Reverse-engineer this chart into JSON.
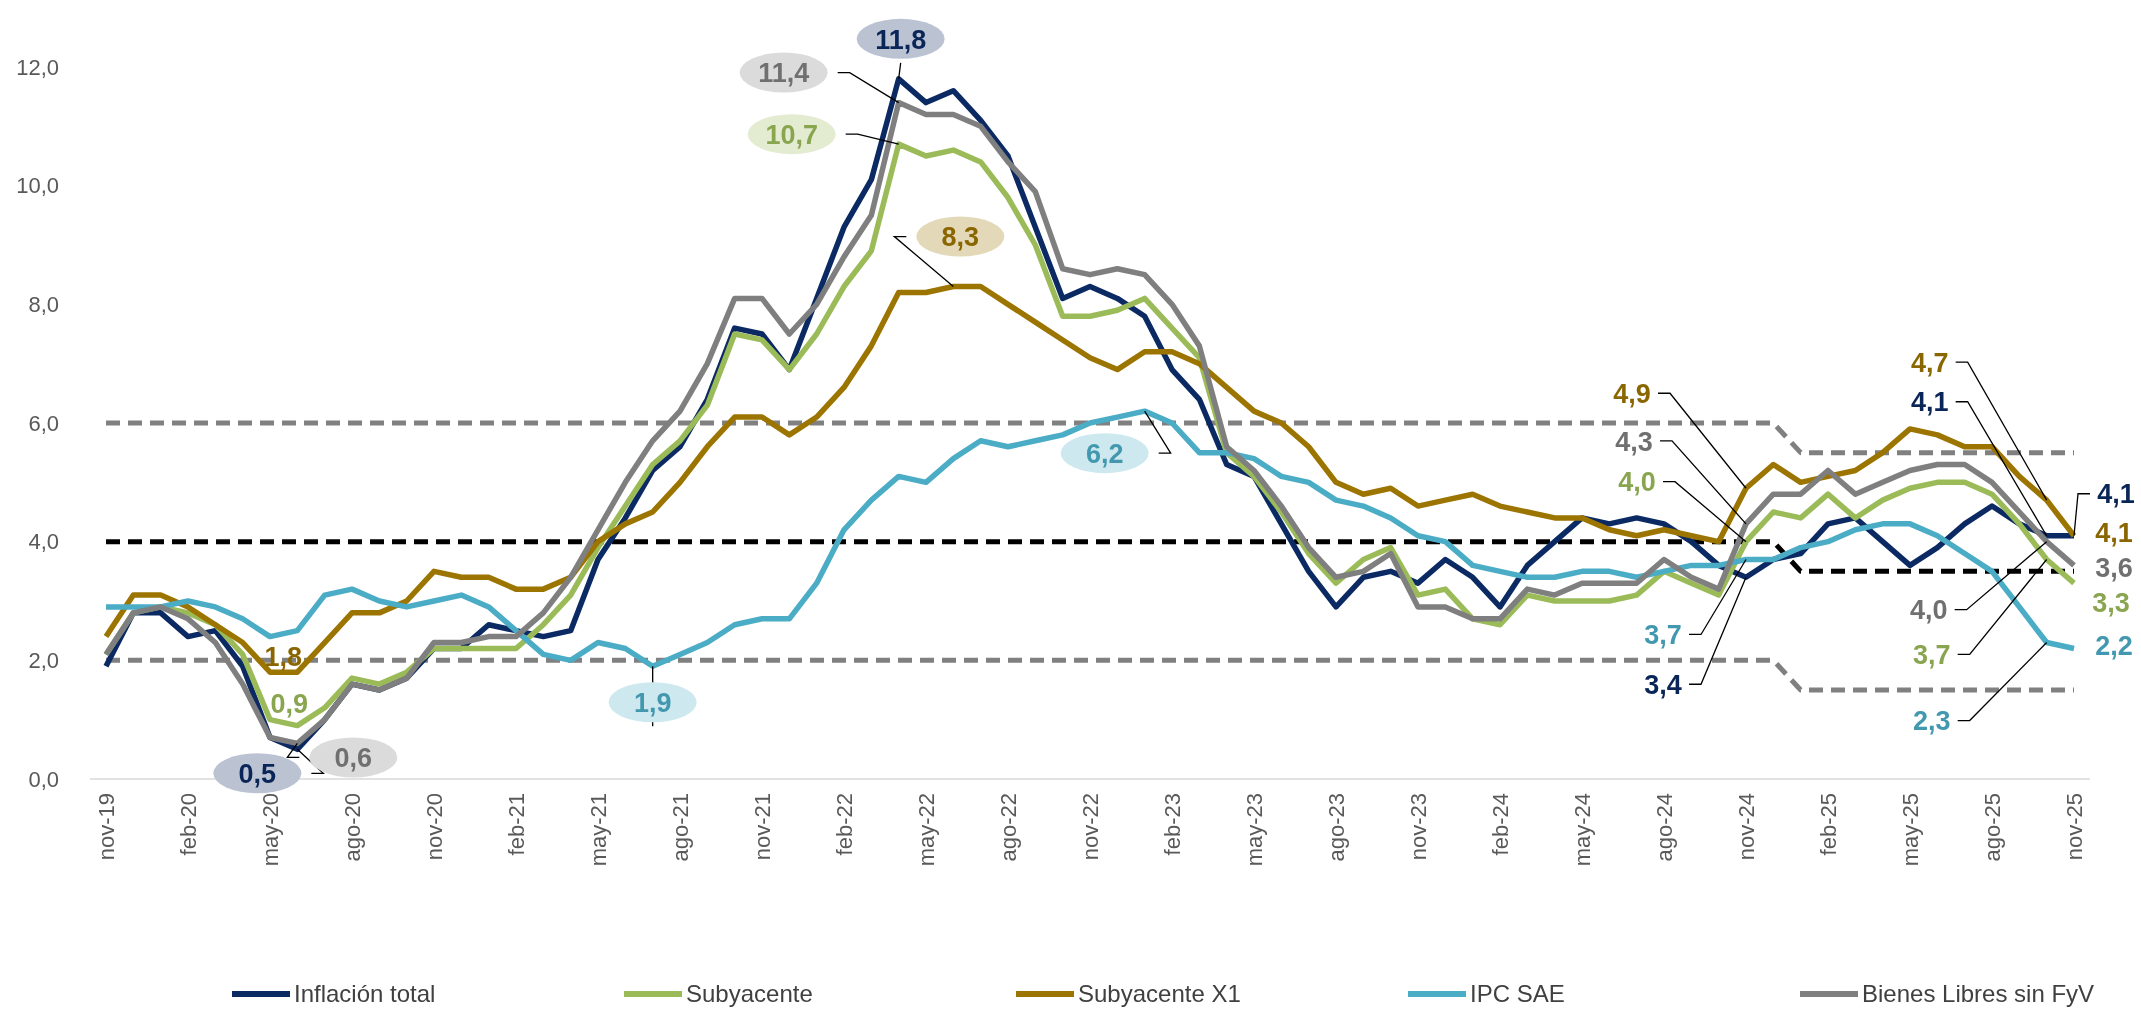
{
  "chart_data": {
    "type": "line",
    "categories": [
      "nov-19",
      null,
      null,
      "feb-20",
      null,
      null,
      "may-20",
      null,
      null,
      "ago-20",
      null,
      null,
      "nov-20",
      null,
      null,
      "feb-21",
      null,
      null,
      "may-21",
      null,
      null,
      "ago-21",
      null,
      null,
      "nov-21",
      null,
      null,
      "feb-22",
      null,
      null,
      "may-22",
      null,
      null,
      "ago-22",
      null,
      null,
      "nov-22",
      null,
      null,
      "feb-23",
      null,
      null,
      "may-23",
      null,
      null,
      "ago-23",
      null,
      null,
      "nov-23",
      null,
      null,
      "feb-24",
      null,
      null,
      "may-24",
      null,
      null,
      "ago-24",
      null,
      null,
      "nov-24",
      null,
      null,
      "feb-25",
      null,
      null,
      "may-25",
      null,
      null,
      "ago-25",
      null,
      null,
      "nov-25"
    ],
    "ylim": [
      0,
      12
    ],
    "yticks": [
      {
        "value": 0,
        "label": "0,0"
      },
      {
        "value": 2,
        "label": "2,0"
      },
      {
        "value": 4,
        "label": "4,0"
      },
      {
        "value": 6,
        "label": "6,0"
      },
      {
        "value": 8,
        "label": "8,0"
      },
      {
        "value": 10,
        "label": "10,0"
      },
      {
        "value": 12,
        "label": "12,0"
      }
    ],
    "grid": false,
    "legend": "bottom",
    "marker": "none",
    "series": [
      {
        "name": "Inflación total",
        "color": "#0b2a63",
        "values": [
          1.9,
          2.8,
          2.8,
          2.4,
          2.5,
          1.9,
          0.7,
          0.5,
          1.0,
          1.6,
          1.5,
          1.7,
          2.2,
          2.2,
          2.6,
          2.5,
          2.4,
          2.5,
          3.7,
          4.4,
          5.2,
          5.6,
          6.4,
          7.6,
          7.5,
          6.9,
          8.1,
          9.3,
          10.1,
          11.8,
          11.4,
          11.6,
          11.1,
          10.5,
          9.3,
          8.1,
          8.3,
          8.1,
          7.8,
          6.9,
          6.4,
          5.3,
          5.1,
          4.3,
          3.5,
          2.9,
          3.4,
          3.5,
          3.3,
          3.7,
          3.4,
          2.9,
          3.6,
          4.0,
          4.4,
          4.3,
          4.4,
          4.3,
          4.0,
          3.6,
          3.4,
          3.7,
          3.8,
          4.3,
          4.4,
          4.0,
          3.6,
          3.9,
          4.3,
          4.6,
          4.3,
          4.1,
          4.1
        ],
        "value_labels": [
          null,
          null,
          null,
          null,
          null,
          null,
          null,
          "0,5",
          null,
          null,
          null,
          null,
          null,
          null,
          null,
          null,
          null,
          null,
          null,
          null,
          null,
          null,
          null,
          null,
          null,
          null,
          null,
          null,
          null,
          "11,8",
          null,
          null,
          null,
          null,
          null,
          null,
          null,
          null,
          null,
          null,
          null,
          null,
          null,
          null,
          null,
          null,
          null,
          null,
          null,
          null,
          null,
          null,
          null,
          null,
          null,
          null,
          null,
          null,
          null,
          null,
          "3,4",
          null,
          null,
          null,
          null,
          null,
          null,
          null,
          null,
          null,
          null,
          "4,1",
          "4,1"
        ]
      },
      {
        "name": "Subyacente",
        "color": "#9bbb59",
        "values": [
          2.1,
          2.8,
          2.9,
          2.8,
          2.6,
          2.1,
          1.0,
          0.9,
          1.2,
          1.7,
          1.6,
          1.8,
          2.2,
          2.2,
          2.2,
          2.2,
          2.6,
          3.1,
          3.9,
          4.6,
          5.3,
          5.7,
          6.3,
          7.5,
          7.4,
          6.9,
          7.5,
          8.3,
          8.9,
          10.7,
          10.5,
          10.6,
          10.4,
          9.8,
          9.0,
          7.8,
          7.8,
          7.9,
          8.1,
          7.6,
          7.1,
          5.5,
          5.1,
          4.5,
          3.8,
          3.3,
          3.7,
          3.9,
          3.1,
          3.2,
          2.7,
          2.6,
          3.1,
          3.0,
          3.0,
          3.0,
          3.1,
          3.5,
          3.3,
          3.1,
          4.0,
          4.5,
          4.4,
          4.8,
          4.4,
          4.7,
          4.9,
          5.0,
          5.0,
          4.8,
          4.3,
          3.7,
          3.3
        ],
        "value_labels": [
          null,
          null,
          null,
          null,
          null,
          null,
          null,
          "0,9",
          null,
          null,
          null,
          null,
          null,
          null,
          null,
          null,
          null,
          null,
          null,
          null,
          null,
          null,
          null,
          null,
          null,
          null,
          null,
          null,
          null,
          "10,7",
          null,
          null,
          null,
          null,
          null,
          null,
          null,
          null,
          null,
          null,
          null,
          null,
          null,
          null,
          null,
          null,
          null,
          null,
          null,
          null,
          null,
          null,
          null,
          null,
          null,
          null,
          null,
          null,
          null,
          null,
          "4,0",
          null,
          null,
          null,
          null,
          null,
          null,
          null,
          null,
          null,
          null,
          "3,7",
          "3,3"
        ]
      },
      {
        "name": "Subyacente X1",
        "color": "#9c7400",
        "values": [
          2.4,
          3.1,
          3.1,
          2.9,
          2.6,
          2.3,
          1.8,
          1.8,
          2.3,
          2.8,
          2.8,
          3.0,
          3.5,
          3.4,
          3.4,
          3.2,
          3.2,
          3.4,
          4.0,
          4.3,
          4.5,
          5.0,
          5.6,
          6.1,
          6.1,
          5.8,
          6.1,
          6.6,
          7.3,
          8.2,
          8.2,
          8.3,
          8.3,
          8.0,
          7.7,
          7.4,
          7.1,
          6.9,
          7.2,
          7.2,
          7.0,
          6.6,
          6.2,
          6.0,
          5.6,
          5.0,
          4.8,
          4.9,
          4.6,
          4.7,
          4.8,
          4.6,
          4.5,
          4.4,
          4.4,
          4.2,
          4.1,
          4.2,
          4.1,
          4.0,
          4.9,
          5.3,
          5.0,
          5.1,
          5.2,
          5.5,
          5.9,
          5.8,
          5.6,
          5.6,
          5.1,
          4.7,
          4.1
        ],
        "value_labels": [
          null,
          null,
          null,
          null,
          null,
          null,
          null,
          "1,8",
          null,
          null,
          null,
          null,
          null,
          null,
          null,
          null,
          null,
          null,
          null,
          null,
          null,
          null,
          null,
          null,
          null,
          null,
          null,
          null,
          null,
          null,
          null,
          "8,3",
          null,
          null,
          null,
          null,
          null,
          null,
          null,
          null,
          null,
          null,
          null,
          null,
          null,
          null,
          null,
          null,
          null,
          null,
          null,
          null,
          null,
          null,
          null,
          null,
          null,
          null,
          null,
          null,
          "4,9",
          null,
          null,
          null,
          null,
          null,
          null,
          null,
          null,
          null,
          null,
          "4,7",
          "4,1"
        ]
      },
      {
        "name": "IPC SAE",
        "color": "#4bacc6",
        "values": [
          2.9,
          2.9,
          2.9,
          3.0,
          2.9,
          2.7,
          2.4,
          2.5,
          3.1,
          3.2,
          3.0,
          2.9,
          3.0,
          3.1,
          2.9,
          2.5,
          2.1,
          2.0,
          2.3,
          2.2,
          1.9,
          2.1,
          2.3,
          2.6,
          2.7,
          2.7,
          3.3,
          4.2,
          4.7,
          5.1,
          5.0,
          5.4,
          5.7,
          5.6,
          5.7,
          5.8,
          6.0,
          6.1,
          6.2,
          6.0,
          5.5,
          5.5,
          5.4,
          5.1,
          5.0,
          4.7,
          4.6,
          4.4,
          4.1,
          4.0,
          3.6,
          3.5,
          3.4,
          3.4,
          3.5,
          3.5,
          3.4,
          3.5,
          3.6,
          3.6,
          3.7,
          3.7,
          3.9,
          4.0,
          4.2,
          4.3,
          4.3,
          4.1,
          3.8,
          3.5,
          2.9,
          2.3,
          2.2
        ],
        "value_labels": [
          null,
          null,
          null,
          null,
          null,
          null,
          null,
          null,
          null,
          null,
          null,
          null,
          null,
          null,
          null,
          null,
          null,
          null,
          null,
          null,
          "1,9",
          null,
          null,
          null,
          null,
          null,
          null,
          null,
          null,
          null,
          null,
          null,
          null,
          null,
          null,
          null,
          null,
          null,
          "6,2",
          null,
          null,
          null,
          null,
          null,
          null,
          null,
          null,
          null,
          null,
          null,
          null,
          null,
          null,
          null,
          null,
          null,
          null,
          null,
          null,
          null,
          "3,7",
          null,
          null,
          null,
          null,
          null,
          null,
          null,
          null,
          null,
          null,
          "2,3",
          "2,2"
        ]
      },
      {
        "name": "Bienes Libres sin FyV",
        "color": "#7f7f7f",
        "values": [
          2.1,
          2.8,
          2.9,
          2.7,
          2.3,
          1.6,
          0.7,
          0.6,
          1.0,
          1.6,
          1.5,
          1.7,
          2.3,
          2.3,
          2.4,
          2.4,
          2.8,
          3.4,
          4.2,
          5.0,
          5.7,
          6.2,
          7.0,
          8.1,
          8.1,
          7.5,
          8.0,
          8.8,
          9.5,
          11.4,
          11.2,
          11.2,
          11.0,
          10.4,
          9.9,
          8.6,
          8.5,
          8.6,
          8.5,
          8.0,
          7.3,
          5.6,
          5.2,
          4.6,
          3.9,
          3.4,
          3.5,
          3.8,
          2.9,
          2.9,
          2.7,
          2.7,
          3.2,
          3.1,
          3.3,
          3.3,
          3.3,
          3.7,
          3.4,
          3.2,
          4.3,
          4.8,
          4.8,
          5.2,
          4.8,
          5.0,
          5.2,
          5.3,
          5.3,
          5.0,
          4.5,
          4.0,
          3.6
        ],
        "value_labels": [
          null,
          null,
          null,
          null,
          null,
          null,
          null,
          "0,6",
          null,
          null,
          null,
          null,
          null,
          null,
          null,
          null,
          null,
          null,
          null,
          null,
          null,
          null,
          null,
          null,
          null,
          null,
          null,
          null,
          null,
          "11,4",
          null,
          null,
          null,
          null,
          null,
          null,
          null,
          null,
          null,
          null,
          null,
          null,
          null,
          null,
          null,
          null,
          null,
          null,
          null,
          null,
          null,
          null,
          null,
          null,
          null,
          null,
          null,
          null,
          null,
          null,
          "4,3",
          null,
          null,
          null,
          null,
          null,
          null,
          null,
          null,
          null,
          null,
          "4,0",
          "3,6"
        ]
      },
      {
        "color": "#808080",
        "line_style": "dashed",
        "values": [
          6,
          6,
          6,
          6,
          6,
          6,
          6,
          6,
          6,
          6,
          6,
          6,
          6,
          6,
          6,
          6,
          6,
          6,
          6,
          6,
          6,
          6,
          6,
          6,
          6,
          6,
          6,
          6,
          6,
          6,
          6,
          6,
          6,
          6,
          6,
          6,
          6,
          6,
          6,
          6,
          6,
          6,
          6,
          6,
          6,
          6,
          6,
          6,
          6,
          6,
          6,
          6,
          6,
          6,
          6,
          6,
          6,
          6,
          6,
          6,
          6,
          6,
          5.5,
          5.5,
          5.5,
          5.5,
          5.5,
          5.5,
          5.5,
          5.5,
          5.5,
          5.5,
          5.5
        ]
      },
      {
        "color": "#000000",
        "line_style": "dashed",
        "values": [
          4,
          4,
          4,
          4,
          4,
          4,
          4,
          4,
          4,
          4,
          4,
          4,
          4,
          4,
          4,
          4,
          4,
          4,
          4,
          4,
          4,
          4,
          4,
          4,
          4,
          4,
          4,
          4,
          4,
          4,
          4,
          4,
          4,
          4,
          4,
          4,
          4,
          4,
          4,
          4,
          4,
          4,
          4,
          4,
          4,
          4,
          4,
          4,
          4,
          4,
          4,
          4,
          4,
          4,
          4,
          4,
          4,
          4,
          4,
          4,
          4,
          4,
          3.5,
          3.5,
          3.5,
          3.5,
          3.5,
          3.5,
          3.5,
          3.5,
          3.5,
          3.5,
          3.5
        ]
      },
      {
        "color": "#808080",
        "line_style": "dashed",
        "values": [
          2,
          2,
          2,
          2,
          2,
          2,
          2,
          2,
          2,
          2,
          2,
          2,
          2,
          2,
          2,
          2,
          2,
          2,
          2,
          2,
          2,
          2,
          2,
          2,
          2,
          2,
          2,
          2,
          2,
          2,
          2,
          2,
          2,
          2,
          2,
          2,
          2,
          2,
          2,
          2,
          2,
          2,
          2,
          2,
          2,
          2,
          2,
          2,
          2,
          2,
          2,
          2,
          2,
          2,
          2,
          2,
          2,
          2,
          2,
          2,
          2,
          2,
          1.5,
          1.5,
          1.5,
          1.5,
          1.5,
          1.5,
          1.5,
          1.5,
          1.5,
          1.5,
          1.5
        ]
      }
    ]
  }
}
